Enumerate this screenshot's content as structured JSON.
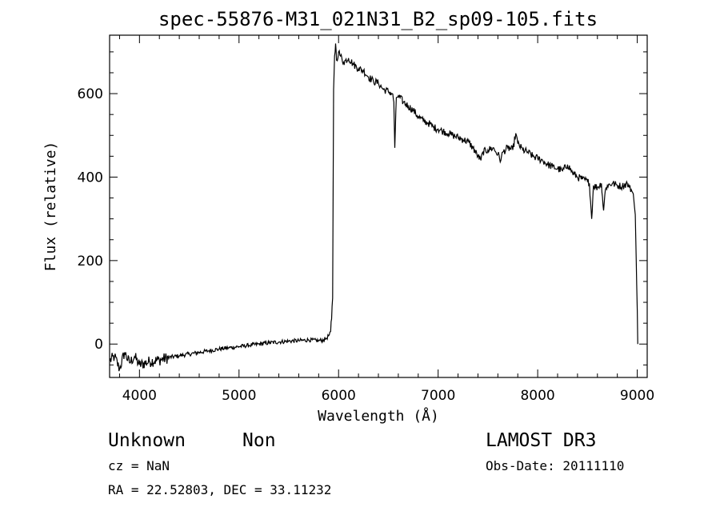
{
  "chart_data": {
    "type": "line",
    "title": "spec-55876-M31_021N31_B2_sp09-105.fits",
    "xlabel": "Wavelength (Å)",
    "ylabel": "Flux (relative)",
    "xlim": [
      3700,
      9100
    ],
    "ylim": [
      -80,
      740
    ],
    "x_ticks": [
      4000,
      5000,
      6000,
      7000,
      8000,
      9000
    ],
    "y_ticks": [
      0,
      200,
      400,
      600
    ],
    "grid": false,
    "series": [
      {
        "x": [
          3700,
          3750,
          3800,
          3850,
          3900,
          3950,
          4000,
          4100,
          4200,
          4300,
          4400,
          4500,
          4600,
          4700,
          4800,
          4900,
          5000,
          5100,
          5200,
          5300,
          5400,
          5500,
          5600,
          5700,
          5800,
          5850,
          5880,
          5900,
          5920,
          5930,
          5940,
          5950,
          5960,
          5970,
          5980,
          6000,
          6020,
          6050,
          6100,
          6150,
          6200,
          6250,
          6300,
          6350,
          6400,
          6450,
          6500,
          6540,
          6555,
          6565,
          6580,
          6600,
          6650,
          6700,
          6750,
          6800,
          6850,
          6900,
          6950,
          7000,
          7050,
          7100,
          7150,
          7200,
          7250,
          7300,
          7350,
          7400,
          7430,
          7450,
          7500,
          7550,
          7600,
          7630,
          7650,
          7700,
          7750,
          7780,
          7800,
          7850,
          7900,
          7950,
          8000,
          8050,
          8100,
          8150,
          8200,
          8250,
          8300,
          8350,
          8400,
          8450,
          8500,
          8520,
          8542,
          8560,
          8600,
          8640,
          8662,
          8680,
          8700,
          8750,
          8800,
          8850,
          8900,
          8920,
          8940,
          8960,
          8980,
          8990,
          9000,
          9005
        ],
        "y": [
          -40,
          -30,
          -60,
          -20,
          -45,
          -30,
          -50,
          -42,
          -38,
          -32,
          -28,
          -24,
          -20,
          -16,
          -12,
          -9,
          -6,
          -3,
          0,
          3,
          5,
          7,
          8,
          10,
          8,
          10,
          14,
          20,
          30,
          60,
          110,
          610,
          690,
          720,
          680,
          700,
          690,
          675,
          685,
          670,
          660,
          655,
          640,
          630,
          625,
          610,
          605,
          600,
          580,
          470,
          590,
          595,
          580,
          570,
          560,
          545,
          535,
          530,
          520,
          515,
          510,
          505,
          500,
          495,
          490,
          485,
          470,
          450,
          440,
          460,
          465,
          470,
          455,
          440,
          460,
          470,
          465,
          505,
          480,
          465,
          460,
          450,
          445,
          440,
          430,
          425,
          420,
          415,
          430,
          410,
          400,
          395,
          390,
          385,
          300,
          380,
          375,
          385,
          320,
          370,
          380,
          385,
          380,
          378,
          385,
          375,
          370,
          360,
          310,
          200,
          80,
          0
        ]
      }
    ]
  },
  "annotations": {
    "obj_class": "Unknown",
    "obj_subclass": "Non",
    "survey": "LAMOST DR3",
    "cz": "cz = NaN",
    "obs_date": "Obs-Date: 20111110",
    "radec": "RA =  22.52803, DEC =  33.11232"
  }
}
